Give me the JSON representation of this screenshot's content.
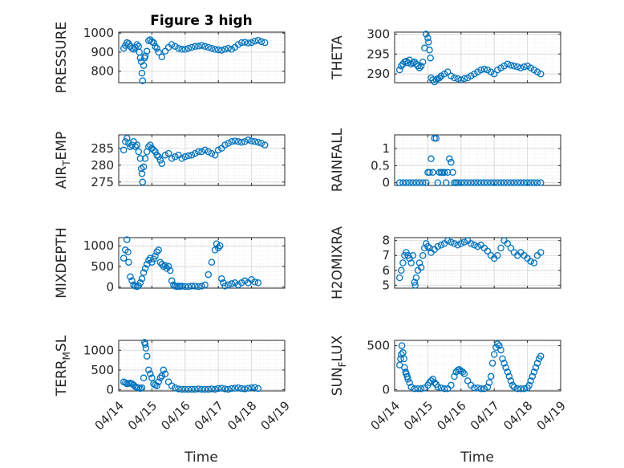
{
  "title": "Figure 3 high",
  "marker_color": "#0072BD",
  "xlabel": "Time",
  "chart_data": [
    {
      "type": "scatter",
      "title": "Figure 3 high",
      "ylabel": "PRESSURE",
      "ylabel_sub": "",
      "xlim": [
        0,
        5
      ],
      "ylim": [
        740,
        1005
      ],
      "yticks": [
        800,
        900,
        1000
      ],
      "xticks": [
        0,
        1,
        2,
        3,
        4,
        5
      ],
      "xticklabels": [
        "04/14",
        "04/15",
        "04/16",
        "04/17",
        "04/18",
        "04/19"
      ],
      "grid": true,
      "x": [
        0.15,
        0.2,
        0.25,
        0.3,
        0.35,
        0.4,
        0.45,
        0.5,
        0.55,
        0.6,
        0.62,
        0.65,
        0.68,
        0.7,
        0.72,
        0.75,
        0.78,
        0.8,
        0.85,
        0.9,
        0.95,
        1.0,
        1.05,
        1.1,
        1.15,
        1.2,
        1.3,
        1.4,
        1.5,
        1.6,
        1.7,
        1.8,
        1.9,
        2.0,
        2.1,
        2.2,
        2.3,
        2.4,
        2.5,
        2.6,
        2.7,
        2.8,
        2.9,
        3.0,
        3.1,
        3.2,
        3.3,
        3.4,
        3.5,
        3.6,
        3.7,
        3.8,
        3.9,
        4.0,
        4.1,
        4.2,
        4.3,
        4.4
      ],
      "y": [
        920,
        935,
        950,
        945,
        930,
        920,
        915,
        925,
        940,
        930,
        900,
        870,
        850,
        790,
        750,
        830,
        870,
        880,
        905,
        960,
        965,
        955,
        950,
        930,
        920,
        900,
        875,
        905,
        925,
        940,
        930,
        920,
        915,
        915,
        920,
        925,
        930,
        932,
        935,
        930,
        925,
        920,
        915,
        912,
        910,
        915,
        920,
        915,
        925,
        940,
        950,
        952,
        948,
        950,
        958,
        962,
        955,
        950
      ]
    },
    {
      "type": "scatter",
      "title": "",
      "ylabel": "THETA",
      "ylabel_sub": "",
      "xlim": [
        0,
        5
      ],
      "ylim": [
        287.8,
        300.5
      ],
      "yticks": [
        290,
        295,
        300
      ],
      "xticks": [
        0,
        1,
        2,
        3,
        4,
        5
      ],
      "xticklabels": [
        "04/14",
        "04/15",
        "04/16",
        "04/17",
        "04/18",
        "04/19"
      ],
      "grid": true,
      "x": [
        0.15,
        0.2,
        0.25,
        0.3,
        0.35,
        0.4,
        0.45,
        0.5,
        0.55,
        0.6,
        0.65,
        0.7,
        0.75,
        0.8,
        0.85,
        0.9,
        0.95,
        1.0,
        1.02,
        1.05,
        1.08,
        1.1,
        1.15,
        1.2,
        1.25,
        1.3,
        1.35,
        1.4,
        1.5,
        1.6,
        1.7,
        1.8,
        1.9,
        2.0,
        2.1,
        2.2,
        2.3,
        2.4,
        2.5,
        2.6,
        2.7,
        2.8,
        2.9,
        3.0,
        3.1,
        3.2,
        3.3,
        3.4,
        3.5,
        3.6,
        3.7,
        3.8,
        3.9,
        4.0,
        4.1,
        4.2,
        4.3,
        4.4
      ],
      "y": [
        291.0,
        292.0,
        292.5,
        293.0,
        293.2,
        292.8,
        293.5,
        292.5,
        292.8,
        293.0,
        292.5,
        292.0,
        291.5,
        292.0,
        293.0,
        296.5,
        300.0,
        299.0,
        298.0,
        296.0,
        294.0,
        289.0,
        288.5,
        288.0,
        288.5,
        288.8,
        289.0,
        289.5,
        290.0,
        290.5,
        289.5,
        289.0,
        288.8,
        288.5,
        288.8,
        289.0,
        289.5,
        290.0,
        290.5,
        291.0,
        291.2,
        291.0,
        290.5,
        290.0,
        291.0,
        291.5,
        292.0,
        292.5,
        292.2,
        292.0,
        291.8,
        291.5,
        291.8,
        292.0,
        291.5,
        291.0,
        290.5,
        290.0
      ]
    },
    {
      "type": "scatter",
      "title": "",
      "ylabel": "AIR",
      "ylabel_sub": "T",
      "ylabel_post": "EMP",
      "xlim": [
        0,
        5
      ],
      "ylim": [
        274,
        289
      ],
      "yticks": [
        275,
        280,
        285
      ],
      "xticks": [
        0,
        1,
        2,
        3,
        4,
        5
      ],
      "xticklabels": [
        "04/14",
        "04/15",
        "04/16",
        "04/17",
        "04/18",
        "04/19"
      ],
      "grid": true,
      "x": [
        0.15,
        0.2,
        0.25,
        0.3,
        0.35,
        0.4,
        0.45,
        0.5,
        0.55,
        0.6,
        0.65,
        0.68,
        0.7,
        0.72,
        0.75,
        0.8,
        0.85,
        0.9,
        0.95,
        1.0,
        1.05,
        1.1,
        1.15,
        1.2,
        1.25,
        1.3,
        1.4,
        1.5,
        1.6,
        1.7,
        1.8,
        1.9,
        2.0,
        2.1,
        2.2,
        2.3,
        2.4,
        2.5,
        2.6,
        2.7,
        2.8,
        2.9,
        3.0,
        3.1,
        3.2,
        3.3,
        3.4,
        3.5,
        3.6,
        3.7,
        3.8,
        3.9,
        4.0,
        4.1,
        4.2,
        4.3,
        4.4
      ],
      "y": [
        284.5,
        287.0,
        288.0,
        286.5,
        285.5,
        286.0,
        287.0,
        285.5,
        286.0,
        284.0,
        282.0,
        279.0,
        277.5,
        275.0,
        279.5,
        282.0,
        284.0,
        285.5,
        286.0,
        285.0,
        284.5,
        284.0,
        283.0,
        282.5,
        281.5,
        280.5,
        283.0,
        283.5,
        282.0,
        282.5,
        283.0,
        282.0,
        282.5,
        282.8,
        283.0,
        283.5,
        284.0,
        284.0,
        284.5,
        284.0,
        283.5,
        283.0,
        284.5,
        285.0,
        286.0,
        286.5,
        287.0,
        287.2,
        287.0,
        286.8,
        287.0,
        287.5,
        287.2,
        287.0,
        286.8,
        286.5,
        286.0
      ]
    },
    {
      "type": "scatter",
      "title": "",
      "ylabel": "RAINFALL",
      "ylabel_sub": "",
      "xlim": [
        0,
        5
      ],
      "ylim": [
        -0.08,
        1.4
      ],
      "yticks": [
        0,
        0.5,
        1
      ],
      "xticks": [
        0,
        1,
        2,
        3,
        4,
        5
      ],
      "xticklabels": [
        "04/14",
        "04/15",
        "04/16",
        "04/17",
        "04/18",
        "04/19"
      ],
      "grid": true,
      "x": [
        0.15,
        0.25,
        0.35,
        0.45,
        0.55,
        0.65,
        0.75,
        0.85,
        0.95,
        1.0,
        1.05,
        1.1,
        1.15,
        1.2,
        1.25,
        1.3,
        1.35,
        1.4,
        1.45,
        1.5,
        1.55,
        1.6,
        1.65,
        1.7,
        1.75,
        1.8,
        1.85,
        1.9,
        2.0,
        2.1,
        2.2,
        2.3,
        2.4,
        2.5,
        2.6,
        2.7,
        2.8,
        2.9,
        3.0,
        3.1,
        3.2,
        3.3,
        3.4,
        3.5,
        3.6,
        3.7,
        3.8,
        3.9,
        4.0,
        4.1,
        4.2,
        4.3,
        4.4
      ],
      "y": [
        0,
        0,
        0,
        0,
        0,
        0,
        0,
        0,
        0,
        0.3,
        0.3,
        0.7,
        0.3,
        1.3,
        1.3,
        0,
        0.3,
        0.3,
        0.3,
        0.3,
        0,
        0.3,
        0.7,
        0.6,
        0.3,
        0,
        0,
        0,
        0,
        0,
        0,
        0,
        0,
        0,
        0,
        0,
        0,
        0,
        0,
        0,
        0,
        0,
        0,
        0,
        0,
        0,
        0,
        0,
        0,
        0,
        0,
        0,
        0
      ]
    },
    {
      "type": "scatter",
      "title": "",
      "ylabel": "MIXDEPTH",
      "ylabel_sub": "",
      "xlim": [
        0,
        5
      ],
      "ylim": [
        -30,
        1200
      ],
      "yticks": [
        0,
        500,
        1000
      ],
      "xticks": [
        0,
        1,
        2,
        3,
        4,
        5
      ],
      "xticklabels": [
        "04/14",
        "04/15",
        "04/16",
        "04/17",
        "04/18",
        "04/19"
      ],
      "grid": true,
      "x": [
        0.15,
        0.2,
        0.25,
        0.28,
        0.3,
        0.35,
        0.4,
        0.45,
        0.5,
        0.55,
        0.6,
        0.65,
        0.7,
        0.75,
        0.8,
        0.85,
        0.9,
        0.95,
        1.0,
        1.05,
        1.1,
        1.15,
        1.2,
        1.25,
        1.3,
        1.35,
        1.4,
        1.45,
        1.5,
        1.55,
        1.6,
        1.65,
        1.7,
        1.75,
        1.8,
        1.85,
        1.9,
        2.0,
        2.1,
        2.2,
        2.3,
        2.4,
        2.5,
        2.6,
        2.7,
        2.8,
        2.9,
        2.95,
        3.0,
        3.05,
        3.1,
        3.15,
        3.2,
        3.3,
        3.4,
        3.5,
        3.6,
        3.7,
        3.8,
        3.9,
        4.0,
        4.1,
        4.2
      ],
      "y": [
        700,
        900,
        1150,
        850,
        600,
        250,
        150,
        50,
        20,
        10,
        30,
        100,
        200,
        350,
        450,
        550,
        650,
        700,
        600,
        680,
        750,
        850,
        900,
        600,
        550,
        500,
        520,
        450,
        500,
        400,
        150,
        50,
        20,
        10,
        20,
        10,
        20,
        10,
        10,
        20,
        20,
        10,
        20,
        50,
        300,
        600,
        900,
        1050,
        950,
        1000,
        200,
        100,
        20,
        50,
        80,
        100,
        50,
        100,
        150,
        100,
        180,
        120,
        100
      ]
    },
    {
      "type": "scatter",
      "title": "",
      "ylabel": "H2OMIXRA",
      "ylabel_sub": "",
      "xlim": [
        0,
        5
      ],
      "ylim": [
        4.8,
        8.2
      ],
      "yticks": [
        5,
        6,
        7,
        8
      ],
      "xticks": [
        0,
        1,
        2,
        3,
        4,
        5
      ],
      "xticklabels": [
        "04/14",
        "04/15",
        "04/16",
        "04/17",
        "04/18",
        "04/19"
      ],
      "grid": true,
      "x": [
        0.15,
        0.2,
        0.25,
        0.3,
        0.35,
        0.4,
        0.45,
        0.5,
        0.55,
        0.6,
        0.62,
        0.65,
        0.7,
        0.75,
        0.8,
        0.85,
        0.9,
        0.95,
        1.0,
        1.05,
        1.1,
        1.2,
        1.3,
        1.4,
        1.5,
        1.6,
        1.7,
        1.8,
        1.9,
        2.0,
        2.1,
        2.2,
        2.3,
        2.4,
        2.5,
        2.6,
        2.7,
        2.8,
        2.9,
        3.0,
        3.1,
        3.2,
        3.3,
        3.4,
        3.5,
        3.6,
        3.7,
        3.8,
        3.9,
        4.0,
        4.1,
        4.2,
        4.3,
        4.4
      ],
      "y": [
        5.5,
        6.0,
        6.5,
        7.0,
        7.2,
        7.0,
        6.8,
        6.5,
        7.0,
        5.2,
        5.0,
        5.5,
        6.0,
        6.5,
        6.2,
        7.0,
        7.5,
        7.8,
        7.6,
        7.5,
        7.2,
        7.4,
        7.6,
        7.7,
        7.8,
        8.0,
        7.9,
        7.8,
        7.7,
        7.8,
        7.9,
        8.0,
        7.8,
        7.7,
        7.6,
        7.7,
        7.5,
        7.3,
        7.0,
        6.8,
        7.0,
        7.5,
        8.0,
        7.8,
        7.5,
        7.2,
        7.0,
        7.2,
        7.0,
        6.8,
        6.6,
        6.5,
        7.0,
        7.2
      ]
    },
    {
      "type": "scatter",
      "title": "",
      "ylabel": "TERR",
      "ylabel_sub": "M",
      "ylabel_post": "SL",
      "xlim": [
        0,
        5
      ],
      "ylim": [
        -30,
        1250
      ],
      "yticks": [
        0,
        500,
        1000
      ],
      "xticks": [
        0,
        1,
        2,
        3,
        4,
        5
      ],
      "xticklabels": [
        "04/14",
        "04/15",
        "04/16",
        "04/17",
        "04/18",
        "04/19"
      ],
      "grid": true,
      "x": [
        0.15,
        0.2,
        0.25,
        0.3,
        0.35,
        0.4,
        0.45,
        0.5,
        0.55,
        0.6,
        0.65,
        0.7,
        0.75,
        0.78,
        0.8,
        0.82,
        0.85,
        0.9,
        0.95,
        1.0,
        1.05,
        1.1,
        1.15,
        1.2,
        1.25,
        1.3,
        1.35,
        1.4,
        1.5,
        1.6,
        1.7,
        1.8,
        1.9,
        2.0,
        2.1,
        2.2,
        2.3,
        2.4,
        2.5,
        2.6,
        2.7,
        2.8,
        2.9,
        3.0,
        3.1,
        3.2,
        3.3,
        3.4,
        3.5,
        3.6,
        3.7,
        3.8,
        3.9,
        4.0,
        4.1,
        4.2
      ],
      "y": [
        200,
        180,
        150,
        160,
        170,
        150,
        120,
        80,
        60,
        50,
        30,
        50,
        300,
        1200,
        1150,
        1050,
        850,
        500,
        400,
        300,
        150,
        120,
        100,
        200,
        300,
        350,
        500,
        400,
        200,
        100,
        50,
        20,
        10,
        10,
        10,
        10,
        10,
        20,
        10,
        10,
        10,
        20,
        10,
        30,
        40,
        20,
        10,
        30,
        40,
        50,
        30,
        20,
        40,
        50,
        60,
        30
      ]
    },
    {
      "type": "scatter",
      "title": "",
      "ylabel": "SUN",
      "ylabel_sub": "F",
      "ylabel_post": "LUX",
      "xlim": [
        0,
        5
      ],
      "ylim": [
        -15,
        560
      ],
      "yticks": [
        0,
        500
      ],
      "xticks": [
        0,
        1,
        2,
        3,
        4,
        5
      ],
      "xticklabels": [
        "04/14",
        "04/15",
        "04/16",
        "04/17",
        "04/18",
        "04/19"
      ],
      "grid": true,
      "x": [
        0.15,
        0.18,
        0.2,
        0.22,
        0.25,
        0.28,
        0.3,
        0.33,
        0.35,
        0.38,
        0.4,
        0.45,
        0.5,
        0.6,
        0.7,
        0.8,
        0.9,
        1.0,
        1.05,
        1.1,
        1.15,
        1.2,
        1.25,
        1.3,
        1.4,
        1.5,
        1.6,
        1.7,
        1.8,
        1.85,
        1.9,
        1.95,
        2.0,
        2.05,
        2.1,
        2.2,
        2.3,
        2.4,
        2.5,
        2.6,
        2.7,
        2.8,
        2.85,
        2.9,
        2.95,
        3.0,
        3.05,
        3.1,
        3.15,
        3.2,
        3.25,
        3.3,
        3.35,
        3.4,
        3.45,
        3.5,
        3.55,
        3.6,
        3.7,
        3.8,
        3.9,
        4.0,
        4.05,
        4.1,
        4.15,
        4.2,
        4.25,
        4.3,
        4.35,
        4.4
      ],
      "y": [
        280,
        350,
        400,
        500,
        420,
        350,
        250,
        200,
        180,
        150,
        120,
        80,
        30,
        10,
        10,
        10,
        20,
        50,
        80,
        100,
        120,
        80,
        60,
        30,
        20,
        10,
        10,
        50,
        150,
        200,
        220,
        230,
        210,
        200,
        180,
        100,
        50,
        20,
        20,
        10,
        10,
        30,
        80,
        150,
        300,
        400,
        480,
        520,
        500,
        450,
        350,
        300,
        250,
        200,
        150,
        100,
        50,
        30,
        10,
        10,
        10,
        20,
        50,
        100,
        150,
        200,
        250,
        300,
        350,
        380
      ]
    }
  ]
}
